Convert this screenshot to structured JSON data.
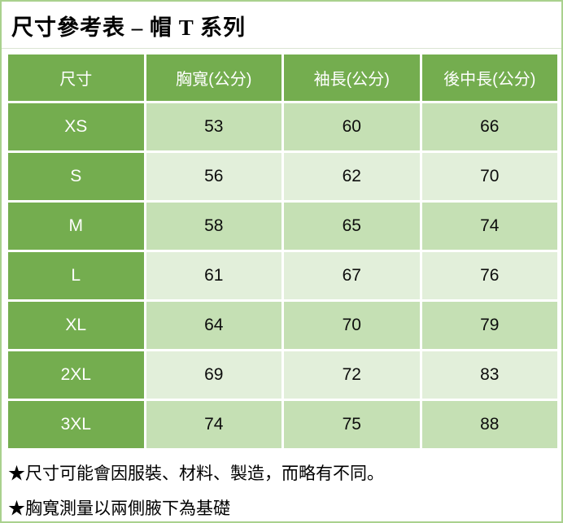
{
  "page": {
    "title": "尺寸參考表 – 帽 T 系列"
  },
  "colors": {
    "accent_green": "#74ad4f",
    "band_dark_green": "#c5e0b4",
    "band_light_green": "#e2efda",
    "page_border_green": "#a9d18e",
    "header_text": "#ffffff"
  },
  "table": {
    "headers": [
      "尺寸",
      "胸寬(公分)",
      "袖長(公分)",
      "後中長(公分)"
    ],
    "rows": [
      {
        "size": "XS",
        "chest": "53",
        "sleeve": "60",
        "back_length": "66"
      },
      {
        "size": "S",
        "chest": "56",
        "sleeve": "62",
        "back_length": "70"
      },
      {
        "size": "M",
        "chest": "58",
        "sleeve": "65",
        "back_length": "74"
      },
      {
        "size": "L",
        "chest": "61",
        "sleeve": "67",
        "back_length": "76"
      },
      {
        "size": "XL",
        "chest": "64",
        "sleeve": "70",
        "back_length": "79"
      },
      {
        "size": "2XL",
        "chest": "69",
        "sleeve": "72",
        "back_length": "83"
      },
      {
        "size": "3XL",
        "chest": "74",
        "sleeve": "75",
        "back_length": "88"
      }
    ]
  },
  "notes": [
    "★尺寸可能會因服裝、材料、製造，而略有不同。",
    "★胸寬測量以兩側腋下為基礎"
  ]
}
